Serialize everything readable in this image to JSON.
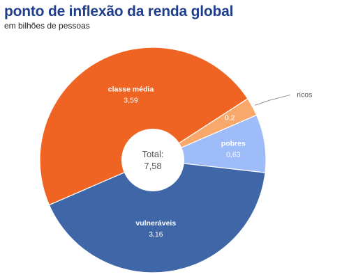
{
  "header": {
    "title": "ponto de inflexão da renda global",
    "subtitle": "em bilhões de pessoas"
  },
  "chart_data": {
    "type": "pie",
    "donut": true,
    "title": "ponto de inflexão da renda global",
    "subtitle": "em bilhões de pessoas",
    "center": {
      "label": "Total:",
      "value": "7,58"
    },
    "slices": [
      {
        "name": "ricos",
        "value": 0.2,
        "label": "0,2",
        "color": "#f9a86b"
      },
      {
        "name": "pobres",
        "value": 0.63,
        "label": "0,63",
        "color": "#9ebcf7"
      },
      {
        "name": "vulneráveis",
        "value": 3.16,
        "label": "3,16",
        "color": "#3f67a8"
      },
      {
        "name": "classe média",
        "value": 3.59,
        "label": "3,59",
        "color": "#f06423"
      }
    ]
  }
}
